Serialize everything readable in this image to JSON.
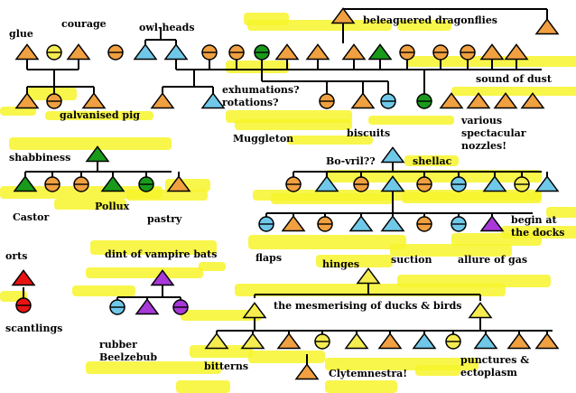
{
  "palette": {
    "orange": "#f0a040",
    "blue": "#70c8e8",
    "green": "#1a9a1a",
    "yellow": "#f5ec50",
    "red": "#e81414",
    "purple": "#a838d8",
    "highlighter": "#f7f52a",
    "stroke": "#000000"
  },
  "labels": {
    "glue": "glue",
    "courage": "courage",
    "owl_heads": "owl-heads",
    "beleaguered_dragonflies": "beleaguered dragonflies",
    "sound_of_dust": "sound of dust",
    "exhumations": "exhumations?",
    "rotations": "rotations?",
    "galvanised_pig": "galvanised pig",
    "muggleton": "Muggleton",
    "biscuits": "biscuits",
    "various": "various",
    "spectacular": "spectacular",
    "nozzles": "nozzles!",
    "shabbiness": "shabbiness",
    "castor": "Castor",
    "pollux": "Pollux",
    "pastry": "pastry",
    "bovril": "Bo-vril??",
    "shellac": "shellac",
    "begin_at": "begin at",
    "the_docks": "the docks",
    "flaps": "flaps",
    "hinges": "hinges",
    "suction": "suction",
    "allure_of_gas": "allure of gas",
    "orts": "orts",
    "scantlings": "scantlings",
    "dint_of_vampire_bats": "dint of vampire bats",
    "rubber": "rubber",
    "beelzebub": "Beelzebub",
    "mesmerising": "the mesmerising of ducks & birds",
    "bitterns": "bitterns",
    "clytemnestra": "Clytemnestra!",
    "punctures": "punctures &",
    "ectoplasm": "ectoplasm"
  },
  "icons": {
    "male": "triangle-icon",
    "female": "circle-icon"
  }
}
